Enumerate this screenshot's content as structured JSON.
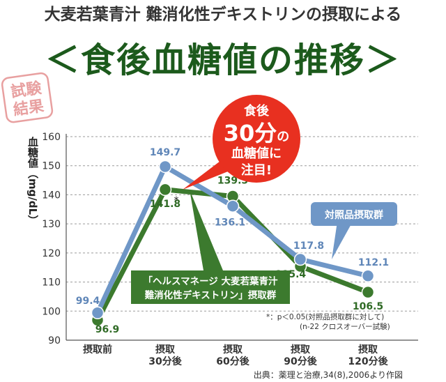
{
  "header": {
    "subtitle": "大麦若葉青汁 難消化性デキストリンの摂取による",
    "title": "＜食後血糖値の推移＞"
  },
  "stamp": {
    "line1": "試験",
    "line2": "結果"
  },
  "callout": {
    "line1": "食後",
    "line2_num": "30分",
    "line2_suffix": "の",
    "line3": "血糖値に",
    "line4": "注目!"
  },
  "colors": {
    "green": "#3c7a2e",
    "green_dark": "#2f6a25",
    "blue": "#6f97c7",
    "blue_dark": "#5f86b8",
    "red": "#e83020",
    "title_green": "#1c5a1c",
    "grid": "#9a9a9a"
  },
  "chart_data": {
    "type": "line",
    "ylabel": "血糖値（mg/dL）",
    "ylim": [
      90,
      160
    ],
    "yticks": [
      90,
      100,
      110,
      120,
      130,
      140,
      150,
      160
    ],
    "categories": [
      "摂取前",
      "摂取\n30分後",
      "摂取\n60分後",
      "摂取\n90分後",
      "摂取\n120分後"
    ],
    "grid": "horizontal-dashed",
    "series": [
      {
        "name": "対照品摂取群",
        "color": "#6f97c7",
        "values": [
          99.4,
          149.7,
          136.1,
          117.8,
          112.1
        ],
        "labels": [
          "99.4",
          "149.7",
          "136.1",
          "117.8",
          "112.1"
        ]
      },
      {
        "name": "「ヘルスマネージ 大麦若葉青汁\n難消化性デキストリン」摂取群",
        "color": "#3c7a2e",
        "values": [
          96.9,
          141.8,
          139.5,
          115.4,
          106.5
        ],
        "labels": [
          "96.9",
          "141.8",
          "139.5",
          "115.4",
          "106.5"
        ]
      }
    ],
    "significance_marker": "*",
    "notes": [
      "*：p＜0.05(対照品摂取群に対して)",
      "(n-22 クロスオーバー試験)"
    ],
    "source": "出典：薬理と治療,34(8),2006より作図"
  }
}
